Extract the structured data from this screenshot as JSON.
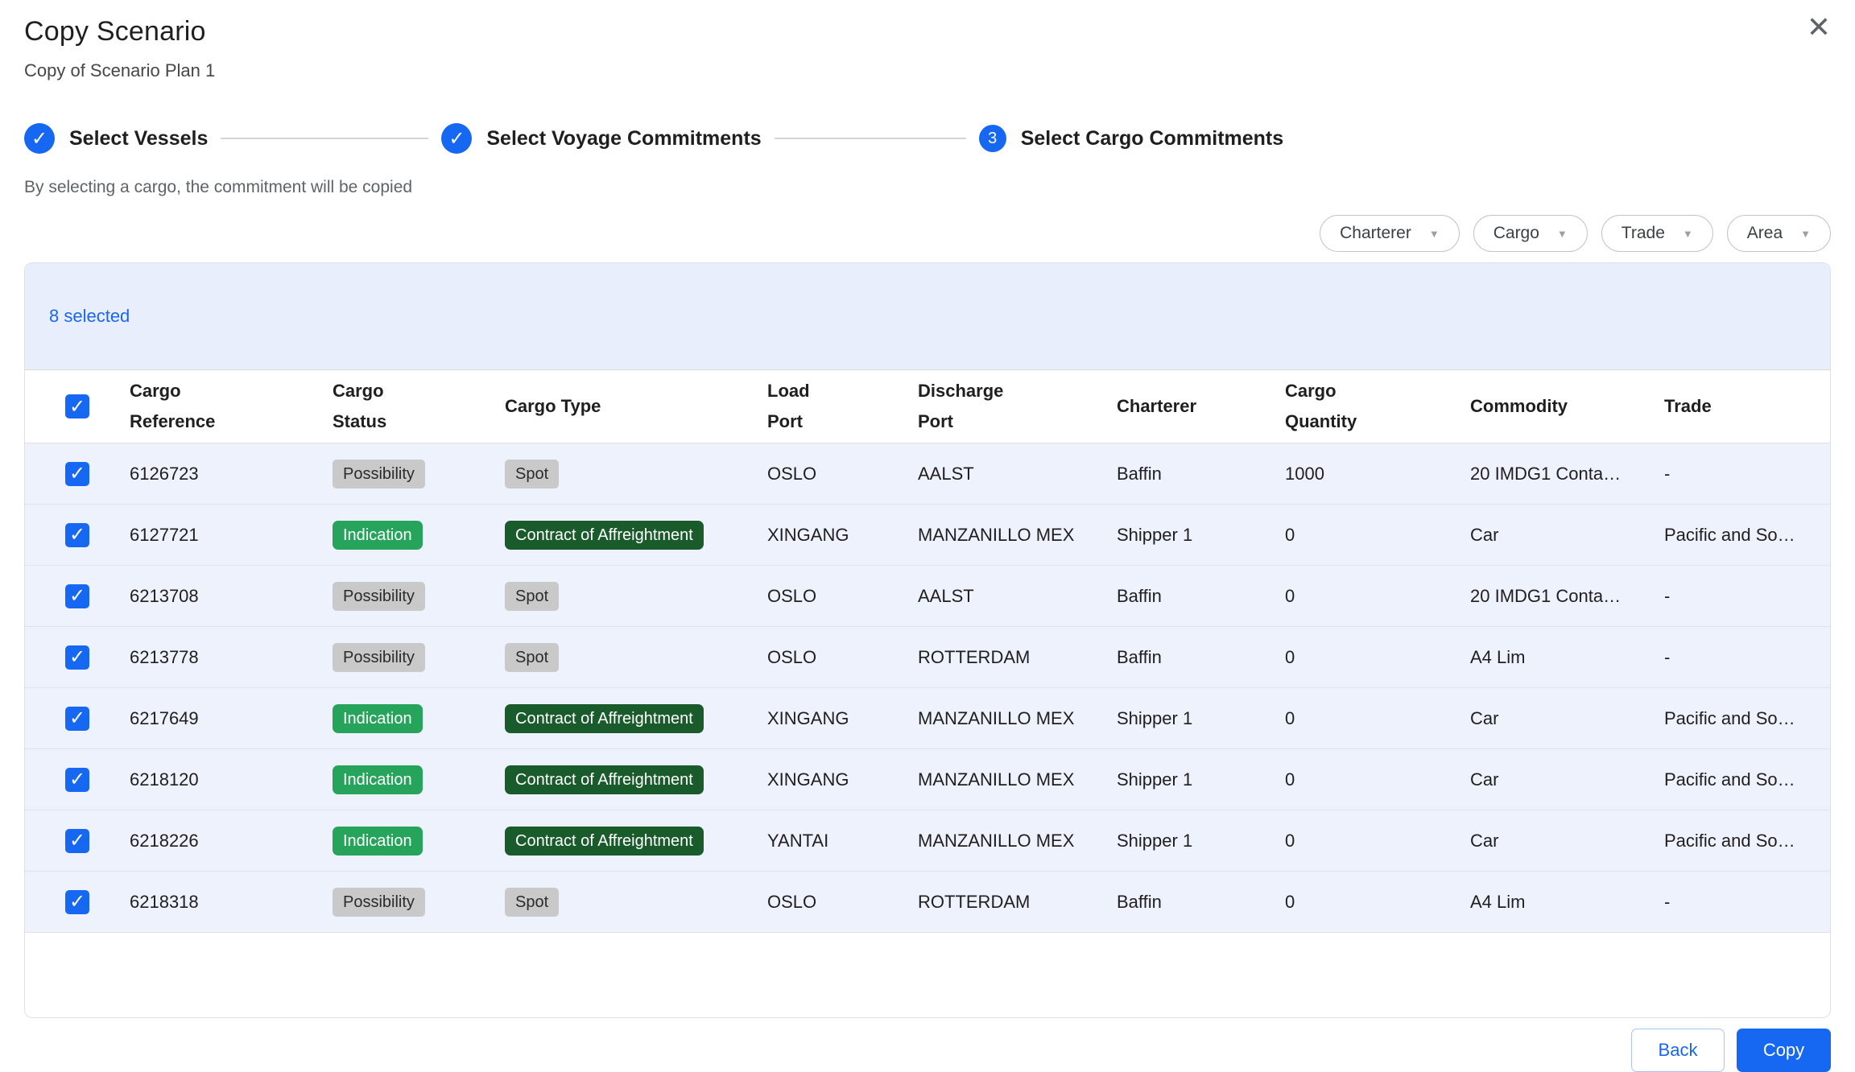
{
  "modal": {
    "title": "Copy Scenario",
    "subtitle": "Copy of Scenario Plan 1"
  },
  "icons": {
    "check": "✓",
    "caret": "▼",
    "close": "✕"
  },
  "stepper": {
    "steps": [
      {
        "label": "Select Vessels",
        "state": "complete"
      },
      {
        "label": "Select Voyage Commitments",
        "state": "complete"
      },
      {
        "label": "Select Cargo Commitments",
        "state": "active",
        "number": "3"
      }
    ],
    "helper_text": "By selecting a cargo, the commitment will be copied"
  },
  "filters": [
    {
      "label": "Charterer"
    },
    {
      "label": "Cargo"
    },
    {
      "label": "Trade"
    },
    {
      "label": "Area"
    }
  ],
  "table": {
    "selected_count_label": "8 selected",
    "columns": [
      {
        "id": "cargo_reference",
        "lines": [
          "Cargo",
          "Reference"
        ]
      },
      {
        "id": "cargo_status",
        "lines": [
          "Cargo",
          "Status"
        ]
      },
      {
        "id": "cargo_type",
        "lines": [
          "Cargo Type"
        ]
      },
      {
        "id": "load_port",
        "lines": [
          "Load",
          "Port"
        ]
      },
      {
        "id": "discharge_port",
        "lines": [
          "Discharge",
          "Port"
        ]
      },
      {
        "id": "charterer",
        "lines": [
          "Charterer"
        ]
      },
      {
        "id": "cargo_quantity",
        "lines": [
          "Cargo",
          "Quantity"
        ]
      },
      {
        "id": "commodity",
        "lines": [
          "Commodity"
        ]
      },
      {
        "id": "trade",
        "lines": [
          "Trade"
        ]
      }
    ],
    "rows": [
      {
        "checked": true,
        "cells": {
          "cargo_reference": "6126723",
          "cargo_status": {
            "text": "Possibility",
            "variant": "gray"
          },
          "cargo_type": {
            "text": "Spot",
            "variant": "gray"
          },
          "load_port": "OSLO",
          "discharge_port": "AALST",
          "charterer": "Baffin",
          "cargo_quantity": "1000",
          "commodity": "20 IMDG1 Conta…",
          "trade": "-"
        }
      },
      {
        "checked": true,
        "cells": {
          "cargo_reference": "6127721",
          "cargo_status": {
            "text": "Indication",
            "variant": "green"
          },
          "cargo_type": {
            "text": "Contract of Affreightment",
            "variant": "dark-green"
          },
          "load_port": "XINGANG",
          "discharge_port": "MANZANILLO MEX",
          "charterer": "Shipper 1",
          "cargo_quantity": "0",
          "commodity": "Car",
          "trade": "Pacific and So…"
        }
      },
      {
        "checked": true,
        "cells": {
          "cargo_reference": "6213708",
          "cargo_status": {
            "text": "Possibility",
            "variant": "gray"
          },
          "cargo_type": {
            "text": "Spot",
            "variant": "gray"
          },
          "load_port": "OSLO",
          "discharge_port": "AALST",
          "charterer": "Baffin",
          "cargo_quantity": "0",
          "commodity": "20 IMDG1 Conta…",
          "trade": "-"
        }
      },
      {
        "checked": true,
        "cells": {
          "cargo_reference": "6213778",
          "cargo_status": {
            "text": "Possibility",
            "variant": "gray"
          },
          "cargo_type": {
            "text": "Spot",
            "variant": "gray"
          },
          "load_port": "OSLO",
          "discharge_port": "ROTTERDAM",
          "charterer": "Baffin",
          "cargo_quantity": "0",
          "commodity": "A4 Lim",
          "trade": "-"
        }
      },
      {
        "checked": true,
        "cells": {
          "cargo_reference": "6217649",
          "cargo_status": {
            "text": "Indication",
            "variant": "green"
          },
          "cargo_type": {
            "text": "Contract of Affreightment",
            "variant": "dark-green"
          },
          "load_port": "XINGANG",
          "discharge_port": "MANZANILLO MEX",
          "charterer": "Shipper 1",
          "cargo_quantity": "0",
          "commodity": "Car",
          "trade": "Pacific and So…"
        }
      },
      {
        "checked": true,
        "cells": {
          "cargo_reference": "6218120",
          "cargo_status": {
            "text": "Indication",
            "variant": "green"
          },
          "cargo_type": {
            "text": "Contract of Affreightment",
            "variant": "dark-green"
          },
          "load_port": "XINGANG",
          "discharge_port": "MANZANILLO MEX",
          "charterer": "Shipper 1",
          "cargo_quantity": "0",
          "commodity": "Car",
          "trade": "Pacific and So…"
        }
      },
      {
        "checked": true,
        "cells": {
          "cargo_reference": "6218226",
          "cargo_status": {
            "text": "Indication",
            "variant": "green"
          },
          "cargo_type": {
            "text": "Contract of Affreightment",
            "variant": "dark-green"
          },
          "load_port": "YANTAI",
          "discharge_port": "MANZANILLO MEX",
          "charterer": "Shipper 1",
          "cargo_quantity": "0",
          "commodity": "Car",
          "trade": "Pacific and So…"
        }
      },
      {
        "checked": true,
        "cells": {
          "cargo_reference": "6218318",
          "cargo_status": {
            "text": "Possibility",
            "variant": "gray"
          },
          "cargo_type": {
            "text": "Spot",
            "variant": "gray"
          },
          "load_port": "OSLO",
          "discharge_port": "ROTTERDAM",
          "charterer": "Baffin",
          "cargo_quantity": "0",
          "commodity": "A4 Lim",
          "trade": "-"
        }
      }
    ]
  },
  "footer": {
    "back_label": "Back",
    "copy_label": "Copy"
  },
  "colors": {
    "accent_blue": "#1667F2",
    "link_blue": "#1a66f2",
    "selection_bg": "#E8EEFB",
    "row_bg": "#EEF2FC",
    "badge_gray_bg": "#C9C9C9",
    "badge_green_bg": "#27A45B",
    "badge_dark_green_bg": "#1A5B2B"
  }
}
